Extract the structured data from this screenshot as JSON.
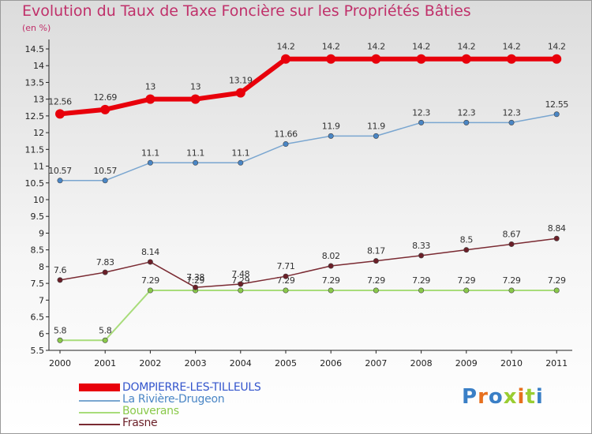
{
  "header": {
    "title": "Evolution du Taux de Taxe Foncière sur les Propriétés Bâties",
    "subtitle": "(en %)"
  },
  "logo": {
    "text": "Proxiti",
    "colors": [
      "#3a7fc6",
      "#e7701f",
      "#3a7fc6",
      "#9acd32",
      "#e7701f",
      "#9acd32",
      "#3a7fc6"
    ]
  },
  "chart_data": {
    "type": "line",
    "x": [
      "2000",
      "2001",
      "2002",
      "2003",
      "2004",
      "2005",
      "2006",
      "2007",
      "2008",
      "2009",
      "2010",
      "2011"
    ],
    "ylim": [
      5.5,
      14.5
    ],
    "yticks": [
      "5.5",
      "6",
      "6.5",
      "7",
      "7.5",
      "8",
      "8.5",
      "9",
      "9.5",
      "10",
      "10.5",
      "11",
      "11.5",
      "12",
      "12.5",
      "13",
      "13.5",
      "14",
      "14.5"
    ],
    "grid": false,
    "legend_position": "bottom-left",
    "series": [
      {
        "name": "DOMPIERRE-LES-TILLEULS",
        "color": "#e8000b",
        "point_color": "#e8000b",
        "width": 6,
        "values": [
          12.56,
          12.69,
          13,
          13,
          13.19,
          14.2,
          14.2,
          14.2,
          14.2,
          14.2,
          14.2,
          14.2
        ],
        "labels": [
          "12.56",
          "12.69",
          "13",
          "13",
          "13.19",
          "14.2",
          "14.2",
          "14.2",
          "14.2",
          "14.2",
          "14.2",
          "14.2"
        ],
        "label_color": "#3355cc"
      },
      {
        "name": "La Rivière-Drugeon",
        "color": "#7aa6d0",
        "point_color": "#4a86c5",
        "width": 1.5,
        "values": [
          10.57,
          10.57,
          11.1,
          11.1,
          11.1,
          11.66,
          11.9,
          11.9,
          12.3,
          12.3,
          12.3,
          12.55
        ],
        "labels": [
          "10.57",
          "10.57",
          "11.1",
          "11.1",
          "11.1",
          "11.66",
          "11.9",
          "11.9",
          "12.3",
          "12.3",
          "12.3",
          "12.55"
        ],
        "label_color": "#4a86c5"
      },
      {
        "name": "Bouverans",
        "color": "#a8dc7a",
        "point_color": "#8ac94a",
        "width": 2,
        "values": [
          5.8,
          5.8,
          7.29,
          7.29,
          7.29,
          7.29,
          7.29,
          7.29,
          7.29,
          7.29,
          7.29,
          7.29
        ],
        "labels": [
          "5.8",
          "5.8",
          "7.29",
          "7.29",
          "7.29",
          "7.29",
          "7.29",
          "7.29",
          "7.29",
          "7.29",
          "7.29",
          "7.29"
        ],
        "label_color": "#8ac94a"
      },
      {
        "name": "Frasne",
        "color": "#7a2a32",
        "point_color": "#6b1f28",
        "width": 1.5,
        "values": [
          7.6,
          7.83,
          8.14,
          7.38,
          7.48,
          7.71,
          8.02,
          8.17,
          8.33,
          8.5,
          8.67,
          8.84
        ],
        "labels": [
          "7.6",
          "7.83",
          "8.14",
          "7.38",
          "7.48",
          "7.71",
          "8.02",
          "8.17",
          "8.33",
          "8.5",
          "8.67",
          "8.84"
        ],
        "label_color": "#6b1f28"
      }
    ]
  }
}
